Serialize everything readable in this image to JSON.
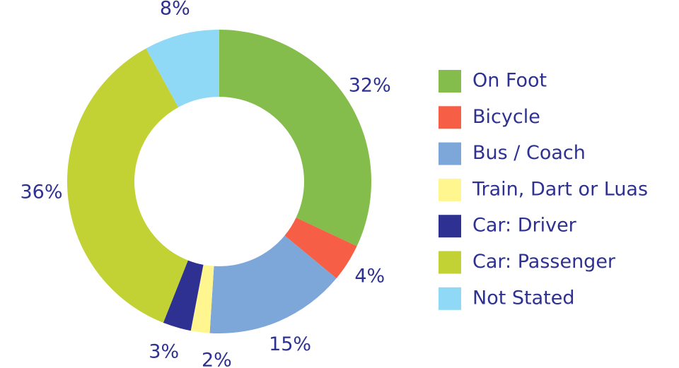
{
  "chart_data": {
    "type": "donut",
    "categories": [
      "On Foot",
      "Bicycle",
      "Bus / Coach",
      "Train, Dart or Luas",
      "Car: Driver",
      "Car: Passenger",
      "Not Stated"
    ],
    "values": [
      32,
      4,
      15,
      2,
      3,
      36,
      8
    ],
    "value_labels": [
      "32%",
      "4%",
      "15%",
      "2%",
      "3%",
      "36%",
      "8%"
    ],
    "colors": [
      "#84bd4b",
      "#f65e45",
      "#7da7d9",
      "#fff68f",
      "#2e3192",
      "#c2d134",
      "#8fd8f6"
    ],
    "legend": "right"
  }
}
